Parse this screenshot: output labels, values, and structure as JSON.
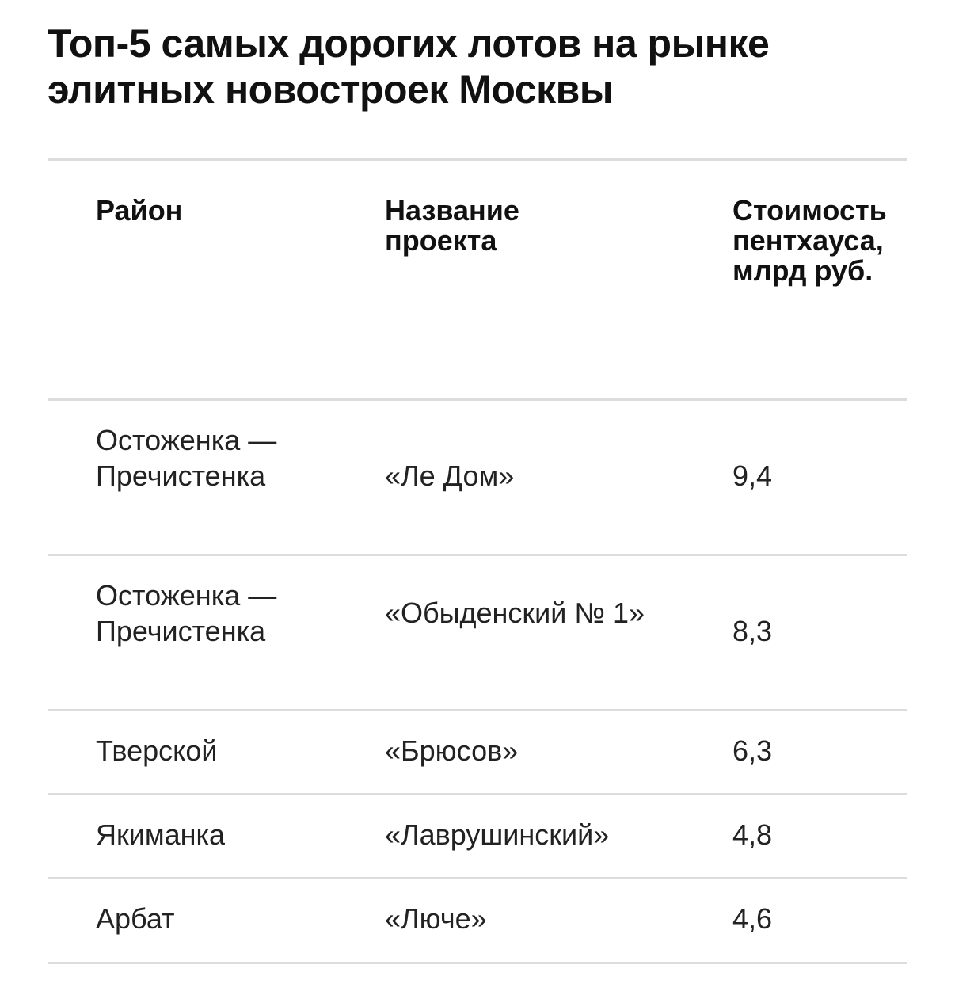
{
  "title": "Топ-5 самых дорогих лотов на рынке элитных новостроек Москвы",
  "table": {
    "headers": {
      "district": "Район",
      "project": "Название проекта",
      "price": "Стоимость пентхауса, млрд руб."
    },
    "rows": [
      {
        "district": "Остоженка — Пречистенка",
        "project": "«Ле Дом»",
        "price": "9,4"
      },
      {
        "district": "Остоженка — Пречистенка",
        "project": "«Обыденский № 1»",
        "price": "8,3"
      },
      {
        "district": "Тверской",
        "project": "«Брюсов»",
        "price": "6,3"
      },
      {
        "district": "Якиманка",
        "project": "«Лаврушинский»",
        "price": "4,8"
      },
      {
        "district": "Арбат",
        "project": "«Люче»",
        "price": "4,6"
      }
    ]
  }
}
